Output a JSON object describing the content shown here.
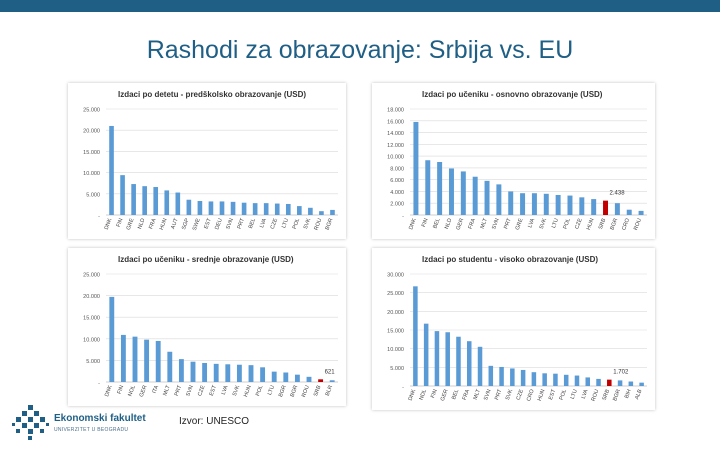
{
  "slide": {
    "title": "Rashodi za obrazovanje: Srbija vs. EU",
    "source": "Izvor: UNESCO"
  },
  "logo": {
    "name": "Ekonomski fakultet",
    "subtitle": "UNIVERZITET U BEOGRADU"
  },
  "colors": {
    "bar": "#5b9bd5",
    "highlight": "#c00000",
    "top_bar": "#1f5f86",
    "title": "#1f5f86",
    "grid": "#d9d9d9"
  },
  "chart_data": [
    {
      "type": "bar",
      "title": "Izdaci po detetu - predškolsko obrazovanje (USD)",
      "categories": [
        "DNK",
        "FIN",
        "GRE",
        "NLD",
        "FRA",
        "HUN",
        "AUT",
        "SGP",
        "SWE",
        "EST",
        "DEU",
        "SVN",
        "PRT",
        "BEL",
        "LVA",
        "CZE",
        "LTU",
        "POL",
        "SVK",
        "ROU",
        "BGR"
      ],
      "values": [
        21000,
        9400,
        7300,
        6800,
        6600,
        5800,
        5300,
        3600,
        3300,
        3200,
        3200,
        3100,
        2900,
        2800,
        2800,
        2700,
        2600,
        2100,
        1700,
        900,
        1200
      ],
      "yticks": [
        "25.000",
        "20.000",
        "15.000",
        "10.000",
        "5.000",
        "-"
      ],
      "ylim": [
        0,
        25000
      ],
      "xlabel": "",
      "ylabel": "",
      "highlight": [],
      "annotation": null
    },
    {
      "type": "bar",
      "title": "Izdaci po učeniku - osnovno obrazovanje (USD)",
      "categories": [
        "DNK",
        "FIN",
        "BEL",
        "NLD",
        "GER",
        "FRA",
        "MLT",
        "SVN",
        "PRT",
        "GRE",
        "LVA",
        "SVK",
        "LTU",
        "POL",
        "CZE",
        "HUN",
        "SRB",
        "BGR",
        "CRO",
        "ROU"
      ],
      "values": [
        15800,
        9300,
        9000,
        7900,
        7400,
        6500,
        5800,
        5200,
        4000,
        3700,
        3700,
        3600,
        3400,
        3300,
        3000,
        2700,
        2438,
        2000,
        900,
        700
      ],
      "yticks": [
        "18.000",
        "16.000",
        "14.000",
        "12.000",
        "10.000",
        "8.000",
        "6.000",
        "4.000",
        "2.000",
        "-"
      ],
      "ylim": [
        0,
        18000
      ],
      "xlabel": "",
      "ylabel": "",
      "highlight": [
        16
      ],
      "annotation": "2.438"
    },
    {
      "type": "bar",
      "title": "Izdaci po učeniku - srednje obrazovanje (USD)",
      "categories": [
        "DNK",
        "FIN",
        "NOL",
        "GER",
        "ITA",
        "MLT",
        "PRT",
        "SVN",
        "CZE",
        "EST",
        "LVA",
        "SVK",
        "HUN",
        "POL",
        "LTU",
        "BGR",
        "BGR",
        "ROU",
        "SRB",
        "BLR"
      ],
      "values": [
        19700,
        10900,
        10500,
        9800,
        9500,
        7000,
        5300,
        4700,
        4400,
        4200,
        4100,
        4000,
        3900,
        3400,
        2400,
        2200,
        1700,
        1200,
        621,
        400
      ],
      "yticks": [
        "25.000",
        "20.000",
        "15.000",
        "10.000",
        "5.000",
        "-"
      ],
      "ylim": [
        0,
        25000
      ],
      "xlabel": "",
      "ylabel": "",
      "highlight": [
        18
      ],
      "annotation": "621"
    },
    {
      "type": "bar",
      "title": "Izdaci po studentu - visoko obrazovanje (USD)",
      "categories": [
        "DNK",
        "NDL",
        "FIN",
        "GER",
        "BEL",
        "FRA",
        "MLT",
        "SVN",
        "PRT",
        "SVK",
        "CZE",
        "CRO",
        "HUN",
        "EST",
        "POL",
        "LTU",
        "LVA",
        "ROU",
        "SRB",
        "BGR",
        "BIH",
        "ALB"
      ],
      "values": [
        26700,
        16700,
        14700,
        14400,
        13200,
        12000,
        10500,
        5400,
        5100,
        4700,
        4300,
        3700,
        3400,
        3300,
        3000,
        2800,
        2300,
        1900,
        1702,
        1500,
        1200,
        900
      ],
      "yticks": [
        "30.000",
        "25.000",
        "20.000",
        "15.000",
        "10.000",
        "5.000",
        "-"
      ],
      "ylim": [
        0,
        30000
      ],
      "xlabel": "",
      "ylabel": "",
      "highlight": [
        18
      ],
      "annotation": "1.702"
    }
  ]
}
